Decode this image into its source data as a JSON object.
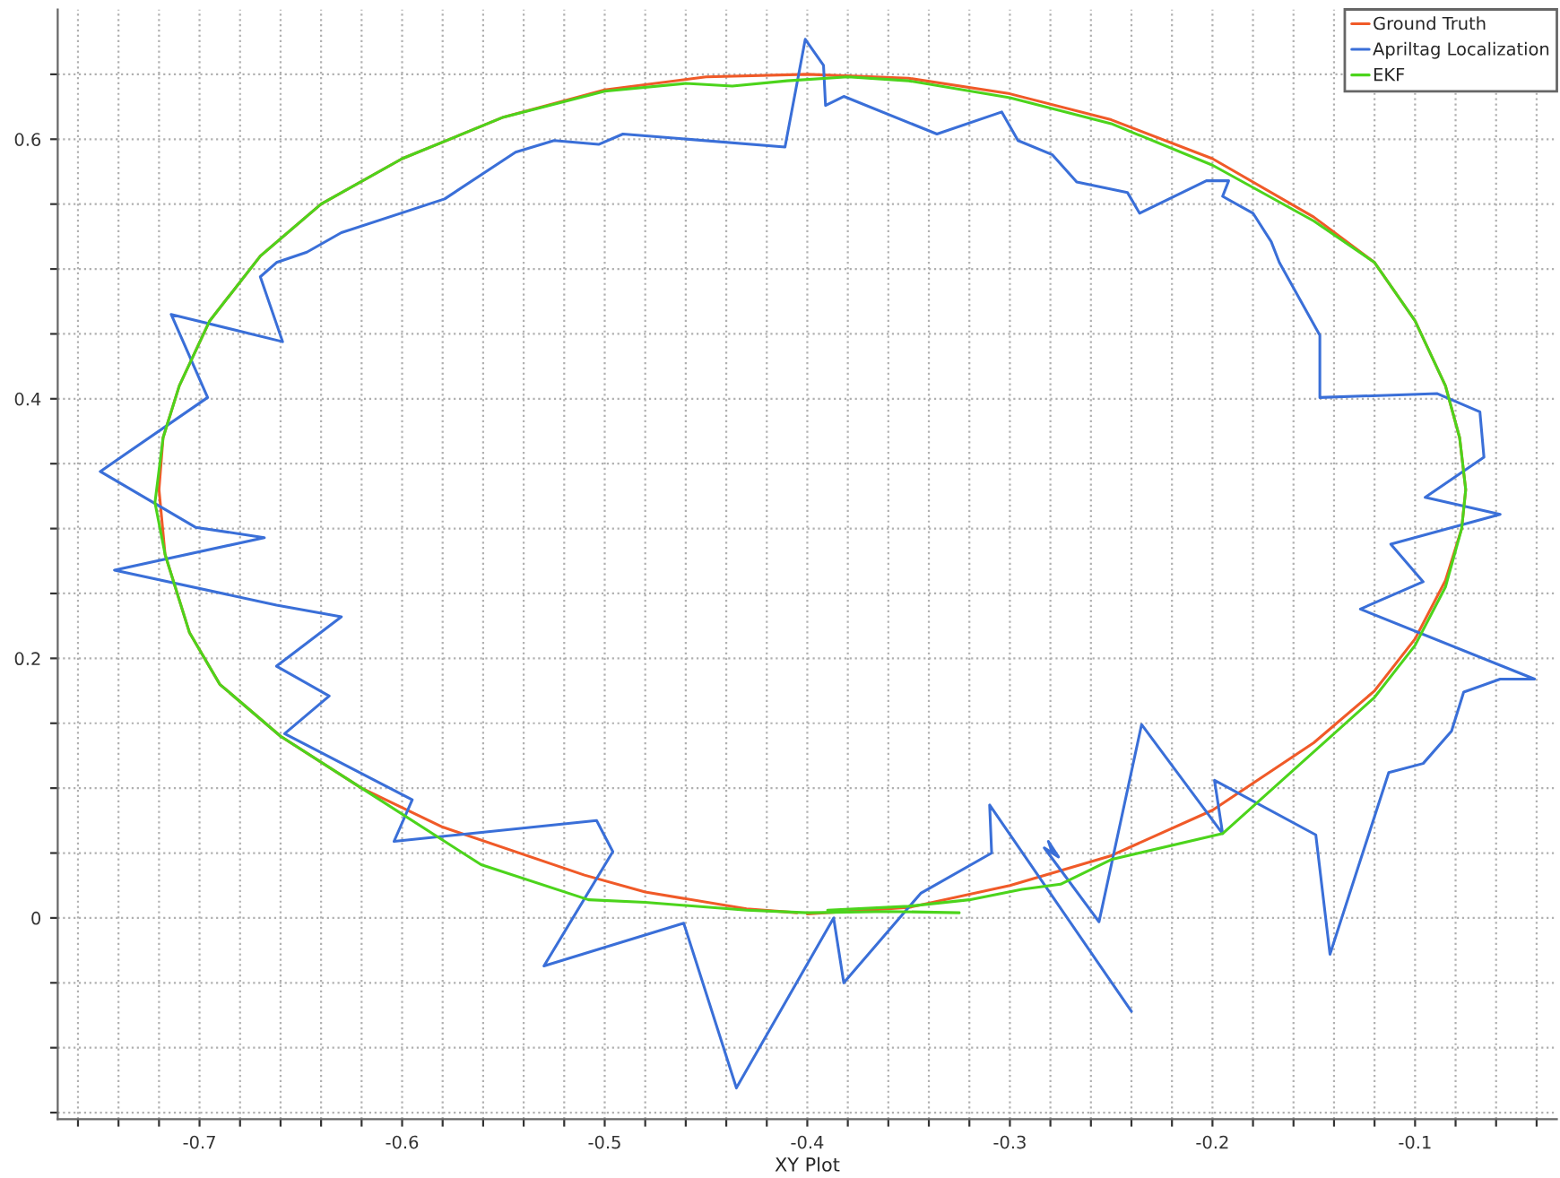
{
  "chart_data": {
    "type": "line",
    "xlabel": "XY Plot",
    "grid": true,
    "legend": "top right",
    "marker": "none",
    "line_style": "solid",
    "xlim": [
      -0.77,
      -0.03
    ],
    "ylim": [
      -0.155,
      0.7
    ],
    "xticks": [
      {
        "value": -0.76,
        "label": null
      },
      {
        "value": -0.74,
        "label": null
      },
      {
        "value": -0.72,
        "label": null
      },
      -0.7,
      {
        "value": -0.68,
        "label": null
      },
      {
        "value": -0.66,
        "label": null
      },
      {
        "value": -0.64,
        "label": null
      },
      {
        "value": -0.62,
        "label": null
      },
      -0.6,
      {
        "value": -0.58,
        "label": null
      },
      {
        "value": -0.56,
        "label": null
      },
      {
        "value": -0.54,
        "label": null
      },
      {
        "value": -0.52,
        "label": null
      },
      -0.5,
      {
        "value": -0.48,
        "label": null
      },
      {
        "value": -0.46,
        "label": null
      },
      {
        "value": -0.44,
        "label": null
      },
      {
        "value": -0.42,
        "label": null
      },
      -0.4,
      {
        "value": -0.38,
        "label": null
      },
      {
        "value": -0.36,
        "label": null
      },
      {
        "value": -0.34,
        "label": null
      },
      {
        "value": -0.32,
        "label": null
      },
      -0.3,
      {
        "value": -0.28,
        "label": null
      },
      {
        "value": -0.26,
        "label": null
      },
      {
        "value": -0.24,
        "label": null
      },
      {
        "value": -0.22,
        "label": null
      },
      -0.2,
      {
        "value": -0.18,
        "label": null
      },
      {
        "value": -0.16,
        "label": null
      },
      {
        "value": -0.14,
        "label": null
      },
      {
        "value": -0.12,
        "label": null
      },
      -0.1,
      {
        "value": -0.08,
        "label": null
      },
      {
        "value": -0.06,
        "label": null
      },
      {
        "value": -0.04,
        "label": null
      }
    ],
    "yticks": [
      {
        "value": -0.15,
        "label": null
      },
      {
        "value": -0.1,
        "label": null
      },
      {
        "value": -0.05,
        "label": null
      },
      0,
      {
        "value": 0.05,
        "label": null
      },
      {
        "value": 0.1,
        "label": null
      },
      {
        "value": 0.15,
        "label": null
      },
      0.2,
      {
        "value": 0.25,
        "label": null
      },
      {
        "value": 0.3,
        "label": null
      },
      {
        "value": 0.35,
        "label": null
      },
      0.4,
      {
        "value": 0.45,
        "label": null
      },
      {
        "value": 0.5,
        "label": null
      },
      {
        "value": 0.55,
        "label": null
      },
      0.6,
      {
        "value": 0.65,
        "label": null
      }
    ],
    "series": [
      {
        "name": "Ground Truth",
        "color": "#f05a28",
        "x": [
          -0.4,
          -0.35,
          -0.3,
          -0.25,
          -0.2,
          -0.15,
          -0.12,
          -0.1,
          -0.085,
          -0.077,
          -0.075,
          -0.078,
          -0.085,
          -0.1,
          -0.12,
          -0.15,
          -0.2,
          -0.25,
          -0.3,
          -0.35,
          -0.4,
          -0.45,
          -0.5,
          -0.55,
          -0.6,
          -0.64,
          -0.67,
          -0.695,
          -0.71,
          -0.718,
          -0.72,
          -0.717,
          -0.705,
          -0.69,
          -0.66,
          -0.62,
          -0.58,
          -0.51,
          -0.48,
          -0.43,
          -0.405
        ],
        "values": [
          0.003,
          0.008,
          0.025,
          0.048,
          0.083,
          0.135,
          0.175,
          0.215,
          0.26,
          0.3,
          0.33,
          0.37,
          0.41,
          0.46,
          0.505,
          0.54,
          0.585,
          0.615,
          0.635,
          0.647,
          0.65,
          0.648,
          0.638,
          0.617,
          0.585,
          0.55,
          0.51,
          0.46,
          0.41,
          0.37,
          0.33,
          0.28,
          0.22,
          0.18,
          0.14,
          0.1,
          0.07,
          0.033,
          0.02,
          0.007,
          0.004
        ]
      },
      {
        "name": "Apriltag Localization",
        "color": "#3a6fd8",
        "x": [
          -0.24,
          -0.31,
          -0.309,
          -0.344,
          -0.382,
          -0.387,
          -0.435,
          -0.461,
          -0.53,
          -0.496,
          -0.504,
          -0.604,
          -0.595,
          -0.658,
          -0.636,
          -0.662,
          -0.63,
          -0.662,
          -0.742,
          -0.668,
          -0.702,
          -0.749,
          -0.696,
          -0.714,
          -0.659,
          -0.67,
          -0.662,
          -0.647,
          -0.63,
          -0.579,
          -0.544,
          -0.525,
          -0.503,
          -0.491,
          -0.411,
          -0.401,
          -0.392,
          -0.391,
          -0.382,
          -0.336,
          -0.304,
          -0.296,
          -0.279,
          -0.267,
          -0.242,
          -0.236,
          -0.203,
          -0.192,
          -0.195,
          -0.18,
          -0.171,
          -0.167,
          -0.147,
          -0.147,
          -0.089,
          -0.068,
          -0.066,
          -0.095,
          -0.058,
          -0.112,
          -0.096,
          -0.127,
          -0.041,
          -0.058,
          -0.076,
          -0.082,
          -0.096,
          -0.113,
          -0.142,
          -0.149,
          -0.199,
          -0.195,
          -0.235,
          -0.256,
          -0.283,
          -0.276,
          -0.281,
          -0.279
        ],
        "values": [
          -0.072,
          0.087,
          0.05,
          0.019,
          -0.05,
          0.0,
          -0.131,
          -0.004,
          -0.037,
          0.051,
          0.075,
          0.059,
          0.091,
          0.142,
          0.171,
          0.194,
          0.232,
          0.241,
          0.268,
          0.293,
          0.301,
          0.344,
          0.401,
          0.465,
          0.444,
          0.494,
          0.505,
          0.513,
          0.528,
          0.554,
          0.59,
          0.599,
          0.596,
          0.604,
          0.594,
          0.677,
          0.657,
          0.626,
          0.633,
          0.604,
          0.621,
          0.599,
          0.588,
          0.567,
          0.559,
          0.543,
          0.568,
          0.568,
          0.556,
          0.543,
          0.521,
          0.505,
          0.449,
          0.401,
          0.404,
          0.39,
          0.355,
          0.324,
          0.311,
          0.288,
          0.259,
          0.238,
          0.184,
          0.184,
          0.174,
          0.144,
          0.119,
          0.112,
          -0.028,
          0.064,
          0.106,
          0.065,
          0.149,
          -0.003,
          0.054,
          0.047,
          0.059,
          0.05
        ]
      },
      {
        "name": "EKF",
        "color": "#4cd41c",
        "x": [
          -0.39,
          -0.35,
          -0.32,
          -0.294,
          -0.275,
          -0.25,
          -0.195,
          -0.15,
          -0.12,
          -0.1,
          -0.085,
          -0.077,
          -0.075,
          -0.078,
          -0.085,
          -0.1,
          -0.12,
          -0.15,
          -0.2,
          -0.25,
          -0.3,
          -0.35,
          -0.38,
          -0.41,
          -0.437,
          -0.46,
          -0.5,
          -0.55,
          -0.6,
          -0.64,
          -0.67,
          -0.695,
          -0.71,
          -0.718,
          -0.722,
          -0.717,
          -0.705,
          -0.69,
          -0.66,
          -0.62,
          -0.561,
          -0.508,
          -0.48,
          -0.43,
          -0.4,
          -0.36,
          -0.325
        ],
        "values": [
          0.006,
          0.009,
          0.014,
          0.022,
          0.026,
          0.045,
          0.065,
          0.128,
          0.17,
          0.21,
          0.255,
          0.3,
          0.33,
          0.37,
          0.41,
          0.46,
          0.505,
          0.537,
          0.58,
          0.612,
          0.632,
          0.645,
          0.648,
          0.645,
          0.641,
          0.643,
          0.637,
          0.617,
          0.585,
          0.55,
          0.51,
          0.46,
          0.41,
          0.37,
          0.32,
          0.28,
          0.22,
          0.18,
          0.14,
          0.1,
          0.041,
          0.014,
          0.012,
          0.006,
          0.004,
          0.005,
          0.004
        ]
      }
    ]
  }
}
